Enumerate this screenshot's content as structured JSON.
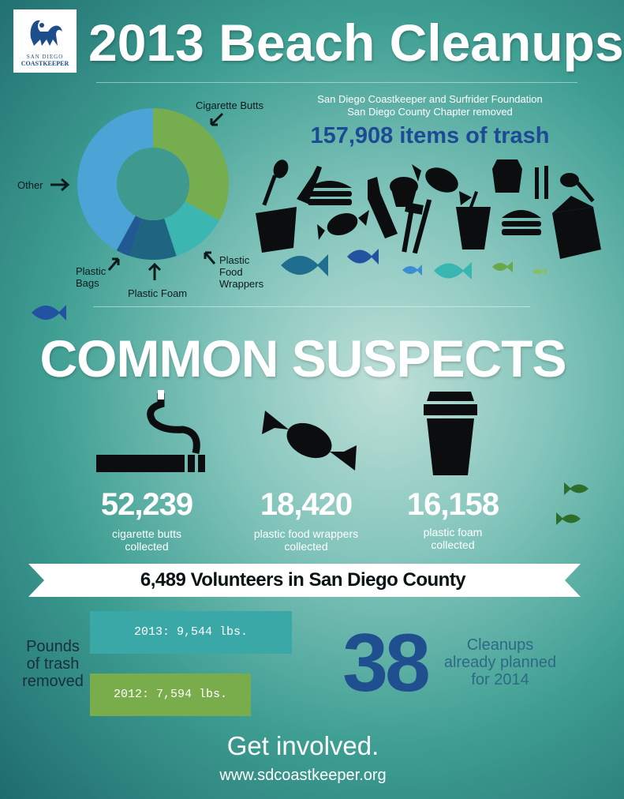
{
  "logo": {
    "line1": "SAN DIEGO",
    "line2": "COASTKEEPER"
  },
  "title": "2013 Beach Cleanups",
  "donut": {
    "labels": {
      "cigarette_butts": "Cigarette Butts",
      "other": "Other",
      "plastic_bags": [
        "Plastic",
        "Bags"
      ],
      "plastic_foam": "Plastic Foam",
      "plastic_food_wrappers": [
        "Plastic",
        "Food",
        "Wrappers"
      ]
    },
    "colors": {
      "cigarette_butts": "#76ad4e",
      "plastic_food_wrappers": "#3cb6b1",
      "plastic_foam": "#1f6581",
      "plastic_bags": "#215a92",
      "other": "#4ba3d6"
    }
  },
  "chart_data": {
    "type": "pie",
    "categories": [
      "Cigarette Butts",
      "Plastic Food Wrappers",
      "Plastic Foam",
      "Plastic Bags",
      "Other"
    ],
    "values": [
      33,
      12,
      10,
      3,
      42
    ]
  },
  "header": {
    "subtitle_line1": "San Diego Coastkeeper and Surfrider Foundation",
    "subtitle_line2": "San Diego County Chapter removed",
    "trash_count": "157,908 items of trash"
  },
  "suspects": {
    "title": "COMMON SUSPECTS",
    "items": [
      {
        "number": "52,239",
        "caption_line1": "cigarette butts",
        "caption_line2": "collected"
      },
      {
        "number": "18,420",
        "caption_line1": "plastic food wrappers",
        "caption_line2": "collected"
      },
      {
        "number": "16,158",
        "caption_line1": "plastic foam",
        "caption_line2": "collected"
      }
    ]
  },
  "volunteers_banner": "6,489 Volunteers in San Diego County",
  "pounds": {
    "label_line1": "Pounds",
    "label_line2": "of trash",
    "label_line3": "removed",
    "bar_2013": "2013: 9,544 lbs.",
    "bar_2012": "2012: 7,594 lbs.",
    "value_2013": 9544,
    "value_2012": 7594,
    "color_2013": "#3aa8a6",
    "color_2012": "#79ad4c"
  },
  "cleanups": {
    "number": "38",
    "text_line1": "Cleanups",
    "text_line2": "already planned",
    "text_line3": "for 2014"
  },
  "footer": {
    "cta": "Get involved.",
    "website": "www.sdcoastkeeper.org"
  }
}
